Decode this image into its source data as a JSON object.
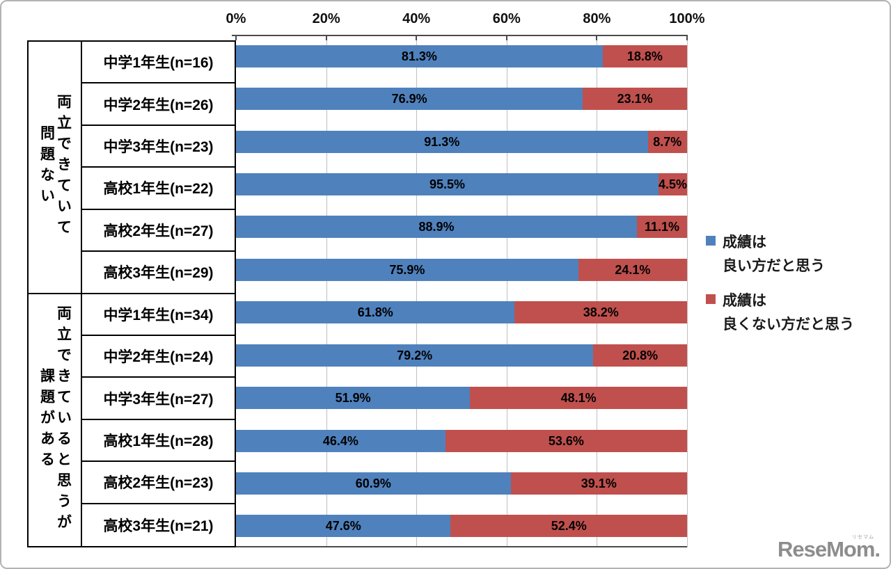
{
  "colors": {
    "blue": "#4F81BD",
    "red": "#C0504D",
    "gridline": "#BFBFBF",
    "axis_line": "#4A4A4A",
    "table_border": "#000000",
    "logo_gray": "#8D8D8D"
  },
  "logo": {
    "text": "ReseMom.",
    "kana": "リセマム"
  },
  "chart_data": {
    "type": "bar",
    "orientation": "horizontal-stacked",
    "title": "",
    "xlabel": "",
    "ylabel": "",
    "xlim": [
      0,
      100
    ],
    "x_ticks": [
      "0%",
      "20%",
      "40%",
      "60%",
      "80%",
      "100%"
    ],
    "grid": "vertical",
    "legend_position": "right",
    "legend": [
      {
        "name": "成績は良い方だと思う",
        "lines": [
          "成績は",
          "良い方だと思う"
        ],
        "color": "#4F81BD"
      },
      {
        "name": "成績は良くない方だと思う",
        "lines": [
          "成績は",
          "良くない方だと思う"
        ],
        "color": "#C0504D"
      }
    ],
    "groups": [
      {
        "label": "両立できていて問題ない",
        "label_lines": [
          "両立できていて",
          "問題ない"
        ],
        "rows": [
          {
            "category": "中学1年生(n=16)",
            "values": [
              81.3,
              18.8
            ],
            "value_labels": [
              "81.3%",
              "18.8%"
            ]
          },
          {
            "category": "中学2年生(n=26)",
            "values": [
              76.9,
              23.1
            ],
            "value_labels": [
              "76.9%",
              "23.1%"
            ]
          },
          {
            "category": "中学3年生(n=23)",
            "values": [
              91.3,
              8.7
            ],
            "value_labels": [
              "91.3%",
              "8.7%"
            ]
          },
          {
            "category": "高校1年生(n=22)",
            "values": [
              95.5,
              4.5
            ],
            "value_labels": [
              "95.5%",
              "4.5%"
            ]
          },
          {
            "category": "高校2年生(n=27)",
            "values": [
              88.9,
              11.1
            ],
            "value_labels": [
              "88.9%",
              "11.1%"
            ]
          },
          {
            "category": "高校3年生(n=29)",
            "values": [
              75.9,
              24.1
            ],
            "value_labels": [
              "75.9%",
              "24.1%"
            ]
          }
        ]
      },
      {
        "label": "両立できていると思うが課題がある",
        "label_lines": [
          "両立できていると思うが",
          "課題がある"
        ],
        "rows": [
          {
            "category": "中学1年生(n=34)",
            "values": [
              61.8,
              38.2
            ],
            "value_labels": [
              "61.8%",
              "38.2%"
            ]
          },
          {
            "category": "中学2年生(n=24)",
            "values": [
              79.2,
              20.8
            ],
            "value_labels": [
              "79.2%",
              "20.8%"
            ]
          },
          {
            "category": "中学3年生(n=27)",
            "values": [
              51.9,
              48.1
            ],
            "value_labels": [
              "51.9%",
              "48.1%"
            ]
          },
          {
            "category": "高校1年生(n=28)",
            "values": [
              46.4,
              53.6
            ],
            "value_labels": [
              "46.4%",
              "53.6%"
            ]
          },
          {
            "category": "高校2年生(n=23)",
            "values": [
              60.9,
              39.1
            ],
            "value_labels": [
              "60.9%",
              "39.1%"
            ]
          },
          {
            "category": "高校3年生(n=21)",
            "values": [
              47.6,
              52.4
            ],
            "value_labels": [
              "47.6%",
              "52.4%"
            ]
          }
        ]
      }
    ]
  }
}
